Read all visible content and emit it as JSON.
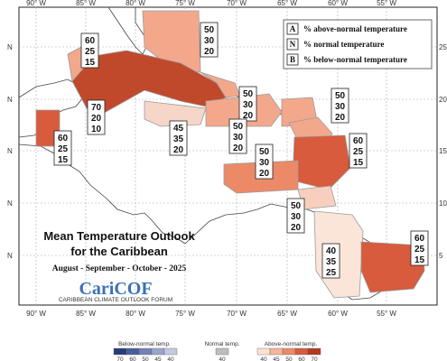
{
  "map": {
    "title_line1": "Mean Temperature Outlook",
    "title_line2": "for the Caribbean",
    "period": "August - September - October - 2025",
    "logo_text": "CariCOF",
    "logo_subtitle": "CARIBBEAN CLIMATE OUTLOOK FORUM",
    "lon_labels_top": [
      "90° W",
      "85° W",
      "80° W",
      "75° W",
      "70° W",
      "65° W",
      "60° W",
      "55° W"
    ],
    "lon_labels_bottom": [
      "90° W",
      "85° W",
      "80° W",
      "75° W",
      "70° W",
      "65° W",
      "60° W",
      "55° W"
    ],
    "lat_labels_right": [
      "25",
      "20",
      "15",
      "10",
      "5"
    ],
    "lat_labels_left": [
      "N",
      "N",
      "N",
      "N",
      "N"
    ],
    "key": [
      {
        "letter": "A",
        "text": "% above-normal temperature"
      },
      {
        "letter": "N",
        "text": "% normal temperature"
      },
      {
        "letter": "B",
        "text": "% below-normal temperature"
      }
    ],
    "colorbar": {
      "below_label": "Below-normal temp.",
      "normal_label": "Normal temp.",
      "above_label": "Above-normal temp.",
      "below_ticks": [
        "70",
        "60",
        "50",
        "45",
        "40"
      ],
      "normal_ticks": [
        "40"
      ],
      "above_ticks": [
        "40",
        "45",
        "50",
        "60",
        "70"
      ],
      "below_colors": [
        "#2a3b7a",
        "#4a5d9c",
        "#7381b8",
        "#9aa5cc",
        "#c3c9e2"
      ],
      "normal_colors": [
        "#bdbdbd"
      ],
      "above_colors": [
        "#fbe1d2",
        "#f5b59a",
        "#ec8a68",
        "#d75b3c",
        "#b13a1d"
      ]
    },
    "regions": [
      {
        "name": "bahamas-north",
        "probs": [
          "50",
          "30",
          "20"
        ]
      },
      {
        "name": "cuba-west",
        "probs": [
          "60",
          "25",
          "15"
        ]
      },
      {
        "name": "cuba-central-bahamas",
        "probs": [
          "70",
          "20",
          "10"
        ]
      },
      {
        "name": "belize-guatemala",
        "probs": [
          "60",
          "25",
          "15"
        ]
      },
      {
        "name": "jamaica",
        "probs": [
          "45",
          "35",
          "20"
        ]
      },
      {
        "name": "hispaniola",
        "probs": [
          "50",
          "30",
          "20"
        ]
      },
      {
        "name": "puerto-rico-virgin",
        "probs": [
          "50",
          "30",
          "20"
        ]
      },
      {
        "name": "leewards",
        "probs": [
          "50",
          "30",
          "20"
        ]
      },
      {
        "name": "windwards",
        "probs": [
          "60",
          "25",
          "15"
        ]
      },
      {
        "name": "abc-islands",
        "probs": [
          "50",
          "30",
          "20"
        ]
      },
      {
        "name": "trinidad",
        "probs": [
          "50",
          "30",
          "20"
        ]
      },
      {
        "name": "guyana",
        "probs": [
          "40",
          "35",
          "25"
        ]
      },
      {
        "name": "suriname-guiana",
        "probs": [
          "60",
          "25",
          "15"
        ]
      }
    ]
  }
}
